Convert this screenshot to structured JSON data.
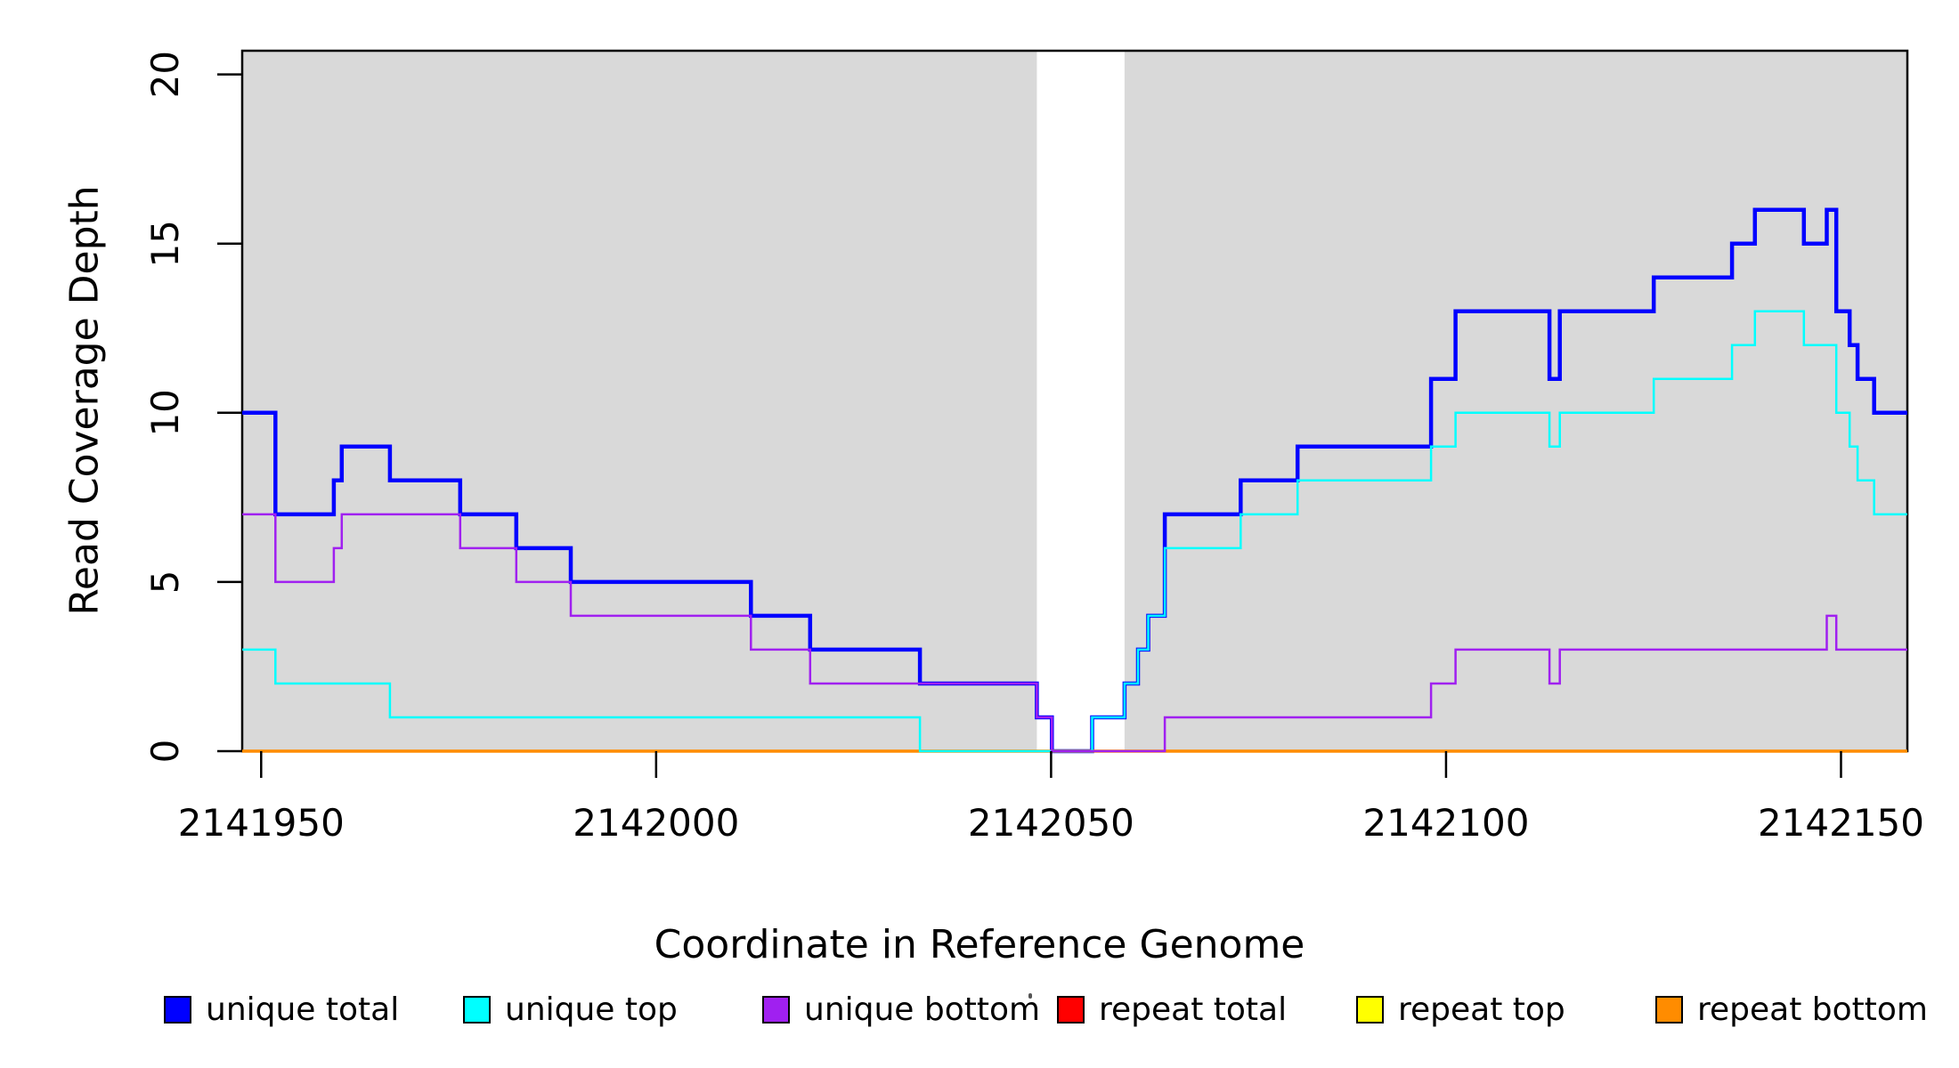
{
  "chart_data": {
    "type": "line",
    "subtype": "step-coverage",
    "title": "",
    "xlabel": "Coordinate in Reference Genome",
    "ylabel": "Read Coverage Depth",
    "xlim": [
      2141947.6,
      2142158.4
    ],
    "ylim": [
      0,
      20.7
    ],
    "x_ticks": [
      2141950,
      2142000,
      2142050,
      2142100,
      2142150
    ],
    "y_ticks": [
      0,
      5,
      10,
      15,
      20
    ],
    "grid": false,
    "legend_position": "bottom",
    "plot_background_color": "#ffffff",
    "shaded_region_color": "#D9D9D9",
    "shaded_regions": [
      {
        "from": 2141947.6,
        "to": 2142048.2
      },
      {
        "from": 2142059.3,
        "to": 2142158.4
      }
    ],
    "white_gap_region": {
      "from": 2142048.2,
      "to": 2142059.3
    },
    "series": [
      {
        "name": "unique total",
        "color": "#0000FF",
        "width": 4.5,
        "steps": [
          [
            2141947.6,
            10
          ],
          [
            2141951.8,
            7
          ],
          [
            2141959.2,
            8
          ],
          [
            2141960.2,
            9
          ],
          [
            2141966.3,
            8
          ],
          [
            2141975.2,
            7
          ],
          [
            2141982.3,
            6
          ],
          [
            2141989.2,
            5
          ],
          [
            2142012.0,
            4
          ],
          [
            2142019.5,
            3
          ],
          [
            2142033.4,
            2
          ],
          [
            2142048.2,
            1
          ],
          [
            2142050.1,
            0
          ],
          [
            2142055.2,
            1
          ],
          [
            2142059.3,
            2
          ],
          [
            2142061.0,
            3
          ],
          [
            2142062.3,
            4
          ],
          [
            2142064.4,
            7
          ],
          [
            2142074.0,
            8
          ],
          [
            2142081.2,
            9
          ],
          [
            2142098.1,
            11
          ],
          [
            2142101.2,
            13
          ],
          [
            2142113.1,
            11
          ],
          [
            2142114.4,
            13
          ],
          [
            2142126.3,
            14
          ],
          [
            2142136.2,
            15
          ],
          [
            2142139.1,
            16
          ],
          [
            2142145.3,
            15
          ],
          [
            2142148.2,
            16
          ],
          [
            2142149.4,
            13
          ],
          [
            2142151.1,
            12
          ],
          [
            2142152.1,
            11
          ],
          [
            2142154.2,
            10
          ]
        ],
        "end": 2142158.4
      },
      {
        "name": "repeat total",
        "color": "#FF0000",
        "width": 2.5,
        "steps": [
          [
            2141947.6,
            0
          ]
        ],
        "end": 2142158.4
      },
      {
        "name": "repeat top",
        "color": "#FFFF00",
        "width": 2.5,
        "steps": [
          [
            2141947.6,
            0
          ]
        ],
        "end": 2142158.4
      },
      {
        "name": "repeat bottom",
        "color": "#FF8C00",
        "width": 3.5,
        "steps": [
          [
            2141947.6,
            0
          ]
        ],
        "end": 2142158.4
      },
      {
        "name": "unique top",
        "color": "#00FFFF",
        "width": 2.5,
        "steps": [
          [
            2141947.6,
            3
          ],
          [
            2141951.8,
            2
          ],
          [
            2141966.3,
            1
          ],
          [
            2142033.4,
            0
          ],
          [
            2142055.2,
            1
          ],
          [
            2142059.3,
            2
          ],
          [
            2142061.0,
            3
          ],
          [
            2142062.3,
            4
          ],
          [
            2142064.4,
            6
          ],
          [
            2142074.0,
            7
          ],
          [
            2142081.2,
            8
          ],
          [
            2142098.1,
            9
          ],
          [
            2142101.2,
            10
          ],
          [
            2142113.1,
            9
          ],
          [
            2142114.4,
            10
          ],
          [
            2142126.3,
            11
          ],
          [
            2142136.2,
            12
          ],
          [
            2142139.1,
            13
          ],
          [
            2142145.3,
            12
          ],
          [
            2142149.4,
            10
          ],
          [
            2142151.1,
            9
          ],
          [
            2142152.1,
            8
          ],
          [
            2142154.2,
            7
          ]
        ],
        "end": 2142158.4
      },
      {
        "name": "unique bottom",
        "color": "#A020F0",
        "width": 2.5,
        "steps": [
          [
            2141947.6,
            7
          ],
          [
            2141951.8,
            5
          ],
          [
            2141959.2,
            6
          ],
          [
            2141960.2,
            7
          ],
          [
            2141975.2,
            6
          ],
          [
            2141982.3,
            5
          ],
          [
            2141989.2,
            4
          ],
          [
            2142012.0,
            3
          ],
          [
            2142019.5,
            2
          ],
          [
            2142048.2,
            1
          ],
          [
            2142050.1,
            0
          ],
          [
            2142064.4,
            1
          ],
          [
            2142098.1,
            2
          ],
          [
            2142101.2,
            3
          ],
          [
            2142113.1,
            2
          ],
          [
            2142114.4,
            3
          ],
          [
            2142148.2,
            4
          ],
          [
            2142149.4,
            3
          ]
        ],
        "end": 2142158.4
      }
    ],
    "legend": [
      {
        "label": "unique total",
        "color": "#0000FF"
      },
      {
        "label": "unique top",
        "color": "#00FFFF"
      },
      {
        "label": "unique bottom",
        "color": "#A020F0"
      },
      {
        "label": "repeat total",
        "color": "#FF0000"
      },
      {
        "label": "repeat top",
        "color": "#FFFF00"
      },
      {
        "label": "repeat bottom",
        "color": "#FF8C00"
      }
    ]
  }
}
